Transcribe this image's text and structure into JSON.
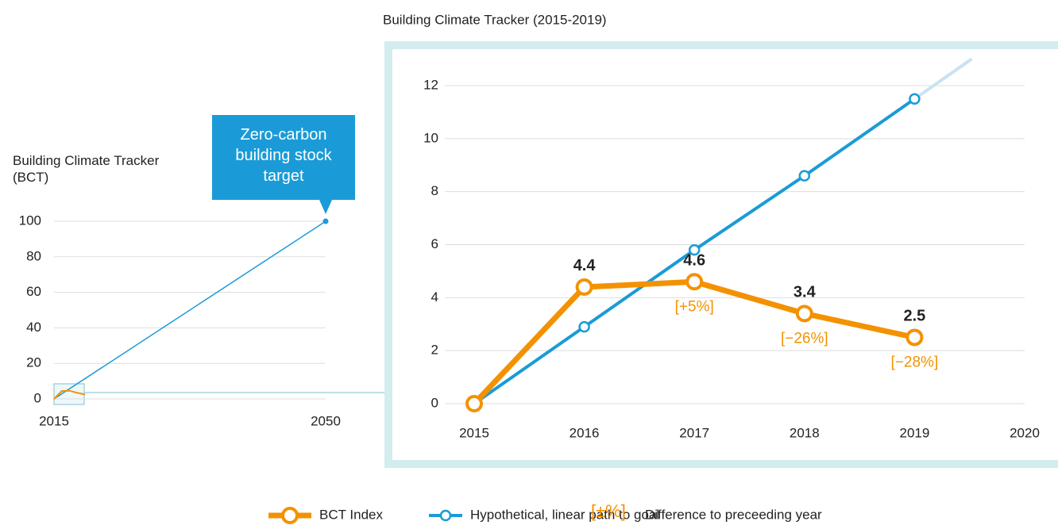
{
  "chart_data": [
    {
      "type": "line",
      "ylabel": "Building Climate Tracker (BCT)",
      "annotation": "Zero-carbon building stock target",
      "xlim": [
        2015,
        2050
      ],
      "xticks": [
        2015,
        2050
      ],
      "ylim": [
        0,
        100
      ],
      "yticks": [
        0,
        20,
        40,
        60,
        80,
        100
      ],
      "grid": true,
      "series": [
        {
          "color": "#1a9bd7",
          "x": [
            2015,
            2050
          ],
          "values": [
            0,
            100
          ]
        },
        {
          "color": "#f39200",
          "x": [
            2015,
            2016,
            2017,
            2018,
            2019
          ],
          "values": [
            0,
            4.4,
            4.6,
            3.4,
            2.5
          ]
        }
      ]
    },
    {
      "type": "line",
      "title": "Building Climate Tracker (2015-2019)",
      "xlim": [
        2015,
        2020
      ],
      "xticks": [
        2015,
        2016,
        2017,
        2018,
        2019,
        2020
      ],
      "ylim": [
        0,
        12
      ],
      "yticks": [
        0,
        2,
        4,
        6,
        8,
        10,
        12
      ],
      "grid": true,
      "x": [
        2015,
        2016,
        2017,
        2018,
        2019
      ],
      "series": [
        {
          "name": "BCT Index",
          "color": "#f39200",
          "values": [
            0,
            4.4,
            4.6,
            3.4,
            2.5
          ],
          "changes": [
            null,
            null,
            "[+5%]",
            "[−26%]",
            "[−28%]"
          ]
        },
        {
          "name": "Hypothetical, linear path to goal",
          "color": "#1a9bd7",
          "values": [
            0,
            2.9,
            5.8,
            8.6,
            11.5
          ]
        }
      ],
      "legend_note": {
        "symbol": "[±%]",
        "label": "Difference to preceeding year"
      }
    }
  ]
}
